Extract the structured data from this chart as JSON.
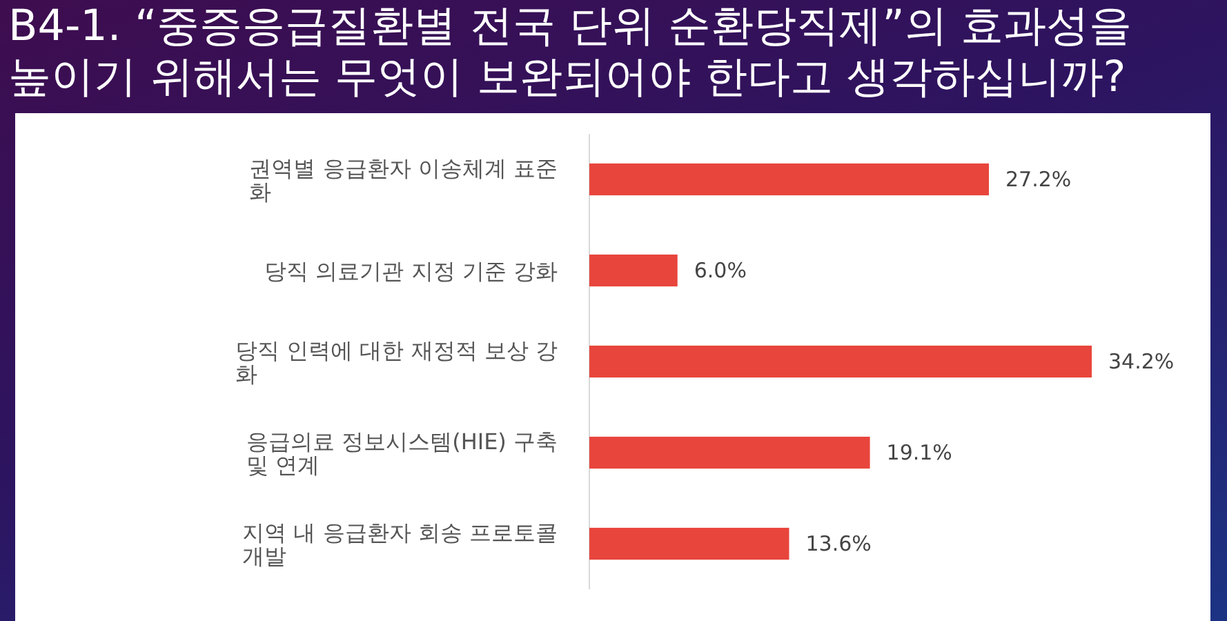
{
  "chart_data": {
    "type": "bar",
    "orientation": "horizontal",
    "title": "B4-1. “중증응급질환별 전국 단위 순환당직제”의 효과성을 높이기 위해서는 무엇이 보완되어야 한다고 생각하십니까?",
    "categories": [
      "권역별 응급환자 이송체계 표준화",
      "당직 의료기관 지정 기준 강화",
      "당직 인력에 대한 재정적 보상 강화",
      "응급의료 정보시스템(HIE) 구축 및 연계",
      "지역 내 응급환자 회송 프로토콜 개발"
    ],
    "values": [
      27.2,
      6.0,
      34.2,
      19.1,
      13.6
    ],
    "value_labels": [
      "27.2%",
      "6.0%",
      "34.2%",
      "19.1%",
      "13.6%"
    ],
    "color": "#e8453c",
    "tick_labels": "y"
  }
}
